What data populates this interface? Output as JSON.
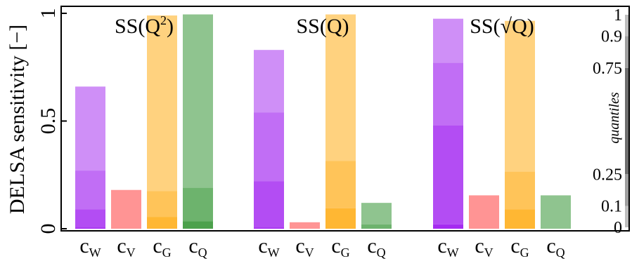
{
  "chart_data": {
    "type": "bar",
    "ylabel": "DELSA sensitivity [−]",
    "ylim": [
      0,
      1
    ],
    "yticks": [
      "0",
      "0.5",
      "1"
    ],
    "quantile_colorbar": {
      "label": "quantiles",
      "ticks": [
        "0",
        "0.1",
        "0.25",
        "0.75",
        "0.9",
        "1"
      ],
      "tick_values": [
        0,
        0.1,
        0.25,
        0.75,
        0.9,
        1
      ]
    },
    "colors": {
      "cW": "#a020f0",
      "cV": "#ff2a2a",
      "cG": "#ffa500",
      "cQ": "#1f8a1f",
      "colorbar_shades": [
        "#bdbdbd",
        "#9e9e9e",
        "#6e6e6e",
        "#9e9e9e",
        "#bdbdbd"
      ]
    },
    "panels": [
      {
        "title_prefix": "SS(Q",
        "title_sup": "2",
        "title_suffix": ")",
        "bars": [
          {
            "param": "c",
            "sub": "W",
            "color_key": "cW",
            "q0": 0.005,
            "q10": 0.09,
            "q25": 0.27,
            "q75": 0.66,
            "q90": 0.66
          },
          {
            "param": "c",
            "sub": "V",
            "color_key": "cV",
            "q0": 0.0,
            "q10": 0.0,
            "q25": 0.0,
            "q75": 0.18,
            "q90": 0.18
          },
          {
            "param": "c",
            "sub": "G",
            "color_key": "cG",
            "q0": 0.0,
            "q10": 0.055,
            "q25": 0.175,
            "q75": 0.99,
            "q90": 0.99
          },
          {
            "param": "c",
            "sub": "Q",
            "color_key": "cQ",
            "q0": 0.0,
            "q10": 0.035,
            "q25": 0.19,
            "q75": 0.995,
            "q90": 0.995
          }
        ]
      },
      {
        "title_prefix": "SS(Q",
        "title_sup": "",
        "title_suffix": ")",
        "bars": [
          {
            "param": "c",
            "sub": "W",
            "color_key": "cW",
            "q0": 0.005,
            "q10": 0.22,
            "q25": 0.54,
            "q75": 0.83,
            "q90": 0.83
          },
          {
            "param": "c",
            "sub": "V",
            "color_key": "cV",
            "q0": 0.0,
            "q10": 0.0,
            "q25": 0.0,
            "q75": 0.03,
            "q90": 0.03
          },
          {
            "param": "c",
            "sub": "G",
            "color_key": "cG",
            "q0": 0.0,
            "q10": 0.095,
            "q25": 0.315,
            "q75": 0.995,
            "q90": 0.995
          },
          {
            "param": "c",
            "sub": "Q",
            "color_key": "cQ",
            "q0": 0.0,
            "q10": 0.0,
            "q25": 0.02,
            "q75": 0.12,
            "q90": 0.12
          }
        ]
      },
      {
        "title_prefix": "SS(√Q",
        "title_sup": "",
        "title_suffix": ")",
        "bars": [
          {
            "param": "c",
            "sub": "W",
            "color_key": "cW",
            "q0": 0.02,
            "q10": 0.48,
            "q25": 0.77,
            "q75": 0.975,
            "q90": 0.975
          },
          {
            "param": "c",
            "sub": "V",
            "color_key": "cV",
            "q0": 0.0,
            "q10": 0.0,
            "q25": 0.0,
            "q75": 0.155,
            "q90": 0.155
          },
          {
            "param": "c",
            "sub": "G",
            "color_key": "cG",
            "q0": 0.0,
            "q10": 0.09,
            "q25": 0.265,
            "q75": 0.965,
            "q90": 0.965
          },
          {
            "param": "c",
            "sub": "Q",
            "color_key": "cQ",
            "q0": 0.0,
            "q10": 0.0,
            "q25": 0.0,
            "q75": 0.155,
            "q90": 0.155
          }
        ]
      }
    ]
  }
}
